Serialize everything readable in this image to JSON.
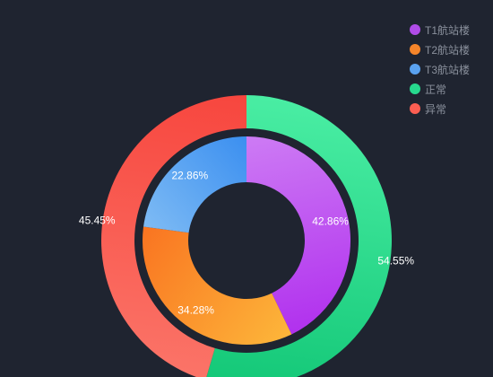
{
  "chart_data": {
    "type": "pie",
    "subtype": "nested-donut",
    "legend": {
      "placement": "top-right",
      "items": [
        {
          "label": "T1航站楼",
          "color": "#b04ce8"
        },
        {
          "label": "T2航站楼",
          "color": "#f5852a"
        },
        {
          "label": "T3航站楼",
          "color": "#5aa2f0"
        },
        {
          "label": "正常",
          "color": "#27d98e"
        },
        {
          "label": "异常",
          "color": "#fb5e52"
        }
      ]
    },
    "series": [
      {
        "ring": "inner",
        "slices": [
          {
            "name": "T1航站楼",
            "percent": 42.86,
            "label": "42.86%",
            "gradient": [
              "#cd7bf4",
              "#b131ee"
            ]
          },
          {
            "name": "T2航站楼",
            "percent": 34.28,
            "label": "34.28%",
            "gradient": [
              "#fdb63a",
              "#f97421"
            ]
          },
          {
            "name": "T3航站楼",
            "percent": 22.86,
            "label": "22.86%",
            "gradient": [
              "#7ebbf4",
              "#3b8ff0"
            ]
          }
        ]
      },
      {
        "ring": "outer",
        "slices": [
          {
            "name": "正常",
            "percent": 54.55,
            "label": "54.55%",
            "gradient": [
              "#49eda3",
              "#14c878"
            ]
          },
          {
            "name": "异常",
            "percent": 45.45,
            "label": "45.45%",
            "gradient": [
              "#fb7468",
              "#f7463e"
            ]
          }
        ]
      }
    ]
  }
}
